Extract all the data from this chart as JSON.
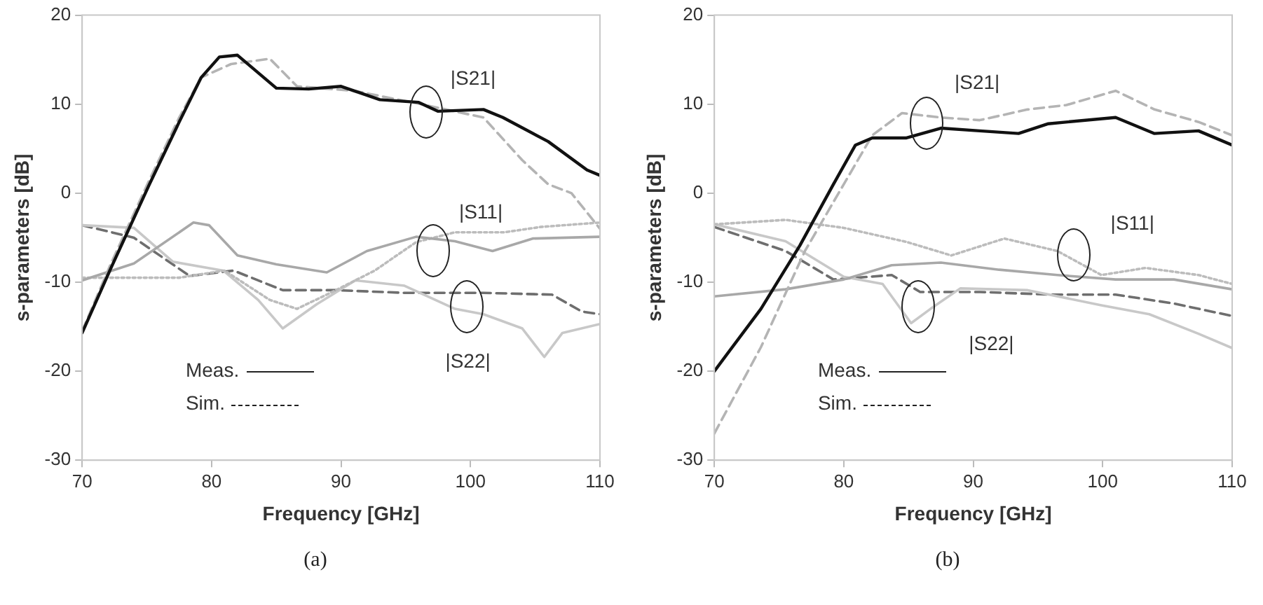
{
  "chart_data": [
    {
      "type": "line",
      "xlabel": "Frequency [GHz]",
      "ylabel": "s-parameters [dB]",
      "xlim": [
        70,
        110
      ],
      "xticks": [
        70,
        80,
        90,
        100,
        110
      ],
      "ylim": [
        -30,
        20
      ],
      "yticks": [
        -30,
        -20,
        -10,
        0,
        10,
        20
      ],
      "grid": false,
      "legend": false,
      "marker": "none",
      "series": [
        {
          "color": "#111111",
          "line_style": "solid",
          "x": [
            70,
            72.2,
            75.2,
            77.5,
            79.2,
            80.6,
            82,
            85,
            87.5,
            90,
            93,
            96,
            97.5,
            101,
            102.5,
            106,
            109,
            110
          ],
          "values": [
            -15.7,
            -8.5,
            1,
            8,
            13,
            15.3,
            15.5,
            11.8,
            11.7,
            12,
            10.5,
            10.2,
            9.2,
            9.4,
            8.5,
            5.8,
            2.6,
            2
          ]
        },
        {
          "color": "#b4b4b4",
          "line_style": "dashed",
          "x": [
            70,
            72.2,
            75.2,
            77.5,
            79.2,
            81.5,
            84.5,
            86.6,
            91,
            96.5,
            101,
            104,
            106,
            107.8,
            110
          ],
          "values": [
            -15.5,
            -8,
            1.5,
            8.5,
            13,
            14.5,
            15.1,
            12,
            11.5,
            9.9,
            8.5,
            3.7,
            1,
            0,
            -4
          ]
        },
        {
          "color": "#a8a8a8",
          "line_style": "solid",
          "x": [
            70,
            74,
            78.6,
            79.8,
            82,
            85,
            88.9,
            92,
            95.8,
            98.8,
            101.7,
            104.8,
            110
          ],
          "values": [
            -9.8,
            -7.9,
            -3.3,
            -3.6,
            -7,
            -8,
            -8.9,
            -6.5,
            -4.9,
            -5.4,
            -6.5,
            -5.1,
            -4.9
          ]
        },
        {
          "color": "#bcbcbc",
          "line_style": "dotted",
          "x": [
            70,
            77.5,
            81,
            84.5,
            86.6,
            89.6,
            92.6,
            95.8,
            98.8,
            102.6,
            105.4,
            110
          ],
          "values": [
            -9.5,
            -9.5,
            -8.7,
            -12,
            -13,
            -10.9,
            -8.7,
            -5.5,
            -4.4,
            -4.4,
            -3.8,
            -3.3
          ]
        },
        {
          "color": "#c8c8c8",
          "line_style": "solid",
          "x": [
            70,
            74,
            77,
            80.9,
            83.6,
            85.5,
            88.1,
            91.1,
            94.9,
            98.8,
            101,
            104,
            105.7,
            107.1,
            110
          ],
          "values": [
            -3.6,
            -3.9,
            -7.7,
            -8.7,
            -12,
            -15.2,
            -12.5,
            -9.8,
            -10.4,
            -13,
            -13.6,
            -15.2,
            -18.4,
            -15.7,
            -14.7
          ]
        },
        {
          "color": "#6e6e6e",
          "line_style": "dashed",
          "x": [
            70,
            74,
            78.3,
            81.7,
            85.5,
            89.6,
            94.9,
            101,
            106.3,
            108.6,
            110
          ],
          "values": [
            -3.6,
            -5,
            -9.3,
            -8.7,
            -10.9,
            -10.9,
            -11.2,
            -11.2,
            -11.4,
            -13.3,
            -13.6
          ]
        }
      ],
      "annotations": [
        "|S21|",
        "|S11|",
        "|S22|",
        "Meas.",
        "Sim.",
        "(a)"
      ]
    },
    {
      "type": "line",
      "xlabel": "Frequency [GHz]",
      "ylabel": "s-parameters [dB]",
      "xlim": [
        70,
        110
      ],
      "xticks": [
        70,
        80,
        90,
        100,
        110
      ],
      "ylim": [
        -30,
        20
      ],
      "yticks": [
        -30,
        -20,
        -10,
        0,
        10,
        20
      ],
      "grid": false,
      "legend": false,
      "marker": "none",
      "series": [
        {
          "color": "#111111",
          "line_style": "solid",
          "x": [
            70,
            73.6,
            76.6,
            79.2,
            80.9,
            82.2,
            84.8,
            87.5,
            90.5,
            93.5,
            95.8,
            101,
            104,
            107.4,
            110
          ],
          "values": [
            -20,
            -13,
            -5.9,
            1,
            5.4,
            6.2,
            6.2,
            7.3,
            7,
            6.7,
            7.8,
            8.5,
            6.7,
            7,
            5.4
          ]
        },
        {
          "color": "#b4b4b4",
          "line_style": "dashed",
          "x": [
            70,
            73.6,
            77,
            80,
            82.2,
            84.5,
            87.5,
            90.5,
            94.2,
            97.2,
            101,
            104,
            107.4,
            110
          ],
          "values": [
            -27,
            -17.3,
            -6.5,
            1,
            6.5,
            9,
            8.5,
            8.2,
            9.4,
            9.9,
            11.5,
            9.4,
            8,
            6.5
          ]
        },
        {
          "color": "#a8a8a8",
          "line_style": "solid",
          "x": [
            70,
            75.5,
            80,
            83.7,
            87.5,
            92,
            96.5,
            101,
            105.5,
            110
          ],
          "values": [
            -11.6,
            -10.8,
            -9.7,
            -8.1,
            -7.8,
            -8.6,
            -9.2,
            -9.7,
            -9.7,
            -10.8
          ]
        },
        {
          "color": "#bcbcbc",
          "line_style": "dotted",
          "x": [
            70,
            75.5,
            80,
            84.9,
            88.3,
            92.4,
            96.5,
            99.9,
            103.3,
            107.4,
            110
          ],
          "values": [
            -3.5,
            -3,
            -3.9,
            -5.5,
            -7,
            -5.1,
            -6.5,
            -9.2,
            -8.4,
            -9.2,
            -10.2
          ]
        },
        {
          "color": "#c8c8c8",
          "line_style": "solid",
          "x": [
            70,
            75.5,
            80,
            83,
            85.2,
            86.7,
            89,
            94.2,
            99.9,
            103.6,
            107.4,
            110
          ],
          "values": [
            -3.5,
            -5.4,
            -9.4,
            -10.2,
            -14.6,
            -13,
            -10.7,
            -10.9,
            -12.6,
            -13.6,
            -15.8,
            -17.4
          ]
        },
        {
          "color": "#6e6e6e",
          "line_style": "dashed",
          "x": [
            70,
            75.5,
            79.2,
            83.7,
            85.9,
            90.5,
            96.1,
            101,
            105.5,
            110
          ],
          "values": [
            -3.8,
            -6.5,
            -9.7,
            -9.2,
            -11.1,
            -11.1,
            -11.4,
            -11.4,
            -12.4,
            -13.8
          ]
        }
      ],
      "annotations": [
        "|S21|",
        "|S11|",
        "|S22|",
        "Meas.",
        "Sim.",
        "(b)"
      ]
    }
  ]
}
